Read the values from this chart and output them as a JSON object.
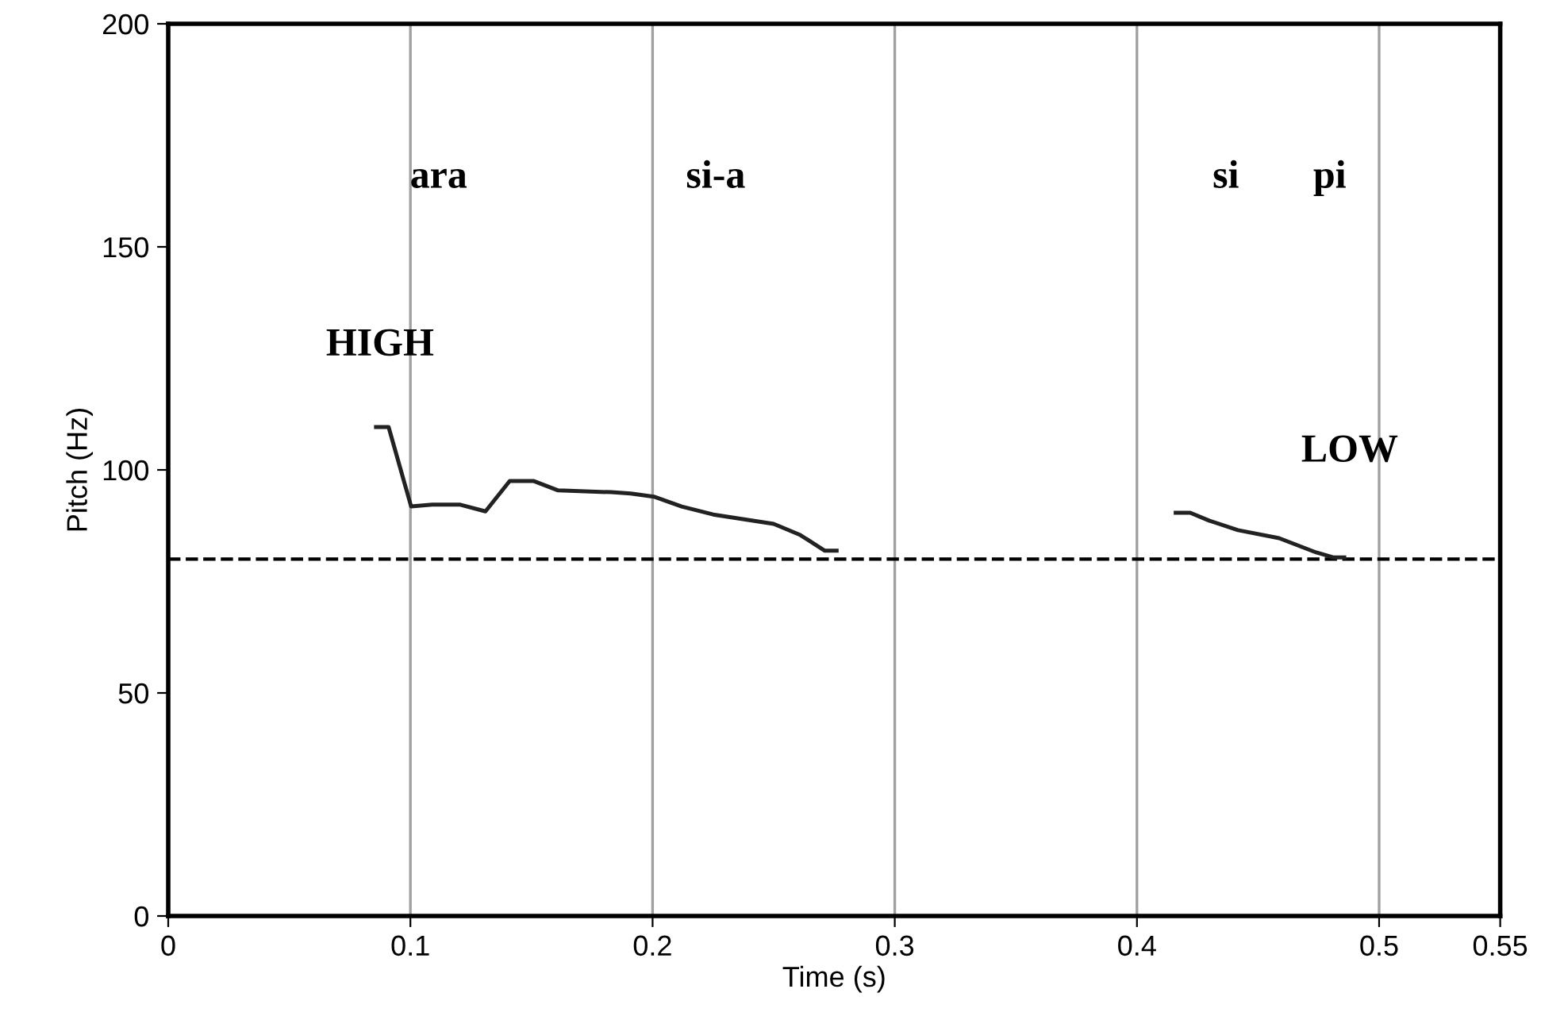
{
  "chart_data": {
    "type": "line",
    "xlabel": "Time (s)",
    "ylabel": "Pitch (Hz)",
    "xlim": [
      0,
      0.55
    ],
    "xticks": [
      0,
      0.1,
      0.2,
      0.3,
      0.4,
      0.5,
      0.55
    ],
    "ylim": [
      0,
      200
    ],
    "yticks": [
      0,
      50,
      100,
      150,
      200
    ],
    "grid": "x",
    "line_style": "solid",
    "series": [
      {
        "color": "#222222",
        "x": [
          0.0858,
          0.091,
          0.1003,
          0.109,
          0.1206,
          0.131,
          0.141,
          0.151,
          0.161,
          0.183,
          0.191,
          0.2005,
          0.212,
          0.225,
          0.25,
          0.261,
          0.271,
          0.276
        ],
        "values": [
          109.6,
          109.6,
          91.8,
          92.2,
          92.2,
          90.7,
          97.5,
          97.5,
          95.4,
          95,
          94.7,
          94,
          91.8,
          90,
          87.9,
          85.4,
          81.9,
          81.9
        ]
      },
      {
        "color": "#222222",
        "x": [
          0.416,
          0.422,
          0.43,
          0.4417,
          0.4587,
          0.474,
          0.481,
          0.4856
        ],
        "values": [
          90.4,
          90.4,
          88.6,
          86.5,
          84.7,
          81.5,
          80.4,
          80.4
        ]
      }
    ],
    "ref_lines": [
      {
        "axis": "y",
        "value": 80,
        "line_style": "dashed",
        "color": "#000000"
      }
    ],
    "annotations": [
      "ara",
      "si-a",
      "si",
      "pi",
      "HIGH",
      "LOW"
    ]
  }
}
